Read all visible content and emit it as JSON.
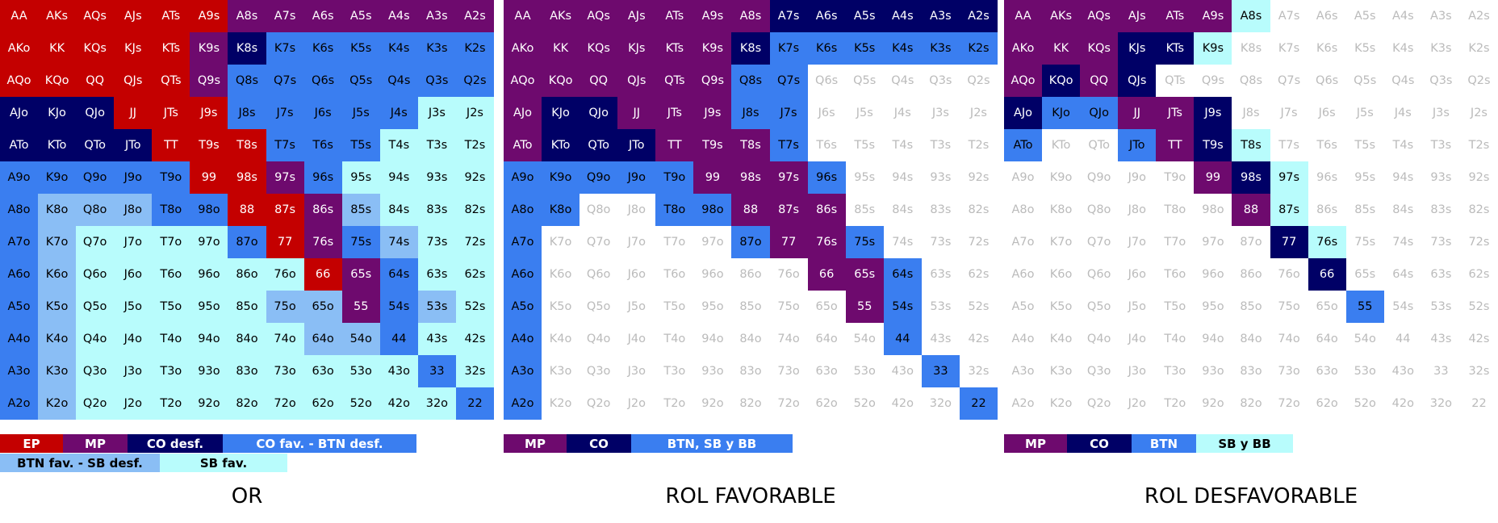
{
  "colors": {
    "EP": "#c40000",
    "MP": "#6e0a6e",
    "CO": "#000066",
    "BTN": "#3a7ef0",
    "BTNf": "#8abef5",
    "SB": "#b8fcfc",
    "empty": "#ffffff",
    "empty_text": "#bbbbbb"
  },
  "hands": [
    [
      "AA",
      "AKs",
      "AQs",
      "AJs",
      "ATs",
      "A9s",
      "A8s",
      "A7s",
      "A6s",
      "A5s",
      "A4s",
      "A3s",
      "A2s"
    ],
    [
      "AKo",
      "KK",
      "KQs",
      "KJs",
      "KTs",
      "K9s",
      "K8s",
      "K7s",
      "K6s",
      "K5s",
      "K4s",
      "K3s",
      "K2s"
    ],
    [
      "AQo",
      "KQo",
      "QQ",
      "QJs",
      "QTs",
      "Q9s",
      "Q8s",
      "Q7s",
      "Q6s",
      "Q5s",
      "Q4s",
      "Q3s",
      "Q2s"
    ],
    [
      "AJo",
      "KJo",
      "QJo",
      "JJ",
      "JTs",
      "J9s",
      "J8s",
      "J7s",
      "J6s",
      "J5s",
      "J4s",
      "J3s",
      "J2s"
    ],
    [
      "ATo",
      "KTo",
      "QTo",
      "JTo",
      "TT",
      "T9s",
      "T8s",
      "T7s",
      "T6s",
      "T5s",
      "T4s",
      "T3s",
      "T2s"
    ],
    [
      "A9o",
      "K9o",
      "Q9o",
      "J9o",
      "T9o",
      "99",
      "98s",
      "97s",
      "96s",
      "95s",
      "94s",
      "93s",
      "92s"
    ],
    [
      "A8o",
      "K8o",
      "Q8o",
      "J8o",
      "T8o",
      "98o",
      "88",
      "87s",
      "86s",
      "85s",
      "84s",
      "83s",
      "82s"
    ],
    [
      "A7o",
      "K7o",
      "Q7o",
      "J7o",
      "T7o",
      "97o",
      "87o",
      "77",
      "76s",
      "75s",
      "74s",
      "73s",
      "72s"
    ],
    [
      "A6o",
      "K6o",
      "Q6o",
      "J6o",
      "T6o",
      "96o",
      "86o",
      "76o",
      "66",
      "65s",
      "64s",
      "63s",
      "62s"
    ],
    [
      "A5o",
      "K5o",
      "Q5o",
      "J5o",
      "T5o",
      "95o",
      "85o",
      "75o",
      "65o",
      "55",
      "54s",
      "53s",
      "52s"
    ],
    [
      "A4o",
      "K4o",
      "Q4o",
      "J4o",
      "T4o",
      "94o",
      "84o",
      "74o",
      "64o",
      "54o",
      "44",
      "43s",
      "42s"
    ],
    [
      "A3o",
      "K3o",
      "Q3o",
      "J3o",
      "T3o",
      "93o",
      "83o",
      "73o",
      "63o",
      "53o",
      "43o",
      "33",
      "32s"
    ],
    [
      "A2o",
      "K2o",
      "Q2o",
      "J2o",
      "T2o",
      "92o",
      "82o",
      "72o",
      "62o",
      "52o",
      "42o",
      "32o",
      "22"
    ]
  ],
  "panels": [
    {
      "title": "OR",
      "grid": [
        "EEEEEEMMMMMMM",
        "EEEEEMCBBBBBB",
        "EEEEEMBBBBBBB",
        "CCCEEEBBBBBSS",
        "CCCCEEEBBBSSS",
        "BBBBBEEMBSSSS",
        "BFFFBBEEMFSSS",
        "BFSSSSBEMBFSS",
        "BFSSSSSSEMBSS",
        "BFSSSSSFFMBFS",
        "BFSSSSSSFFBSS",
        "BFSSSSSSSSSBS",
        "BFSSSSSSSSSSB"
      ],
      "legend_row1": [
        {
          "label": "EP",
          "key": "EP",
          "w": 78
        },
        {
          "label": "MP",
          "key": "MP",
          "w": 80
        },
        {
          "label": "CO desf.",
          "key": "CO",
          "w": 118
        },
        {
          "label": "CO fav. - BTN desf.",
          "key": "BTN",
          "w": 240
        }
      ],
      "legend_row2": [
        {
          "label": "BTN fav. - SB desf.",
          "key": "BTNf",
          "w": 198
        },
        {
          "label": "SB fav.",
          "key": "SB",
          "w": 158
        }
      ]
    },
    {
      "title": "ROL FAVORABLE",
      "grid": [
        "MMMMMMMCCCCCC",
        "MMMMMMCBBBBBB",
        "MMMMMMBB.....",
        "MCCMMMBB.....",
        "MCCCMMMB.....",
        "BBBBBMMMB....",
        "BB..BBMMM....",
        "B.....BMMB...",
        "B.......MMB..",
        "B........MB..",
        "B.........B..",
        "B..........B.",
        "B...........B"
      ],
      "legend_row1": [
        {
          "label": "MP",
          "key": "MP",
          "w": 78
        },
        {
          "label": "CO",
          "key": "CO",
          "w": 80
        },
        {
          "label": "BTN, SB y BB",
          "key": "BTN",
          "w": 200
        }
      ],
      "legend_row2": []
    },
    {
      "title": "ROL DESFAVORABLE",
      "grid": [
        "MMMMMMS......",
        "MMMCCS.......",
        "MCMC.........",
        "CBBMMC.......",
        "B..BMCS......",
        ".....MCS.....",
        "......MS.....",
        ".......CS....",
        "........C....",
        ".........B...",
        ".............",
        ".............",
        "............."
      ],
      "legend_row1": [
        {
          "label": "MP",
          "key": "MP",
          "w": 78
        },
        {
          "label": "CO",
          "key": "CO",
          "w": 80
        },
        {
          "label": "BTN",
          "key": "BTN",
          "w": 80
        },
        {
          "label": "SB y BB",
          "key": "SB",
          "w": 120
        }
      ],
      "legend_row2": []
    }
  ]
}
